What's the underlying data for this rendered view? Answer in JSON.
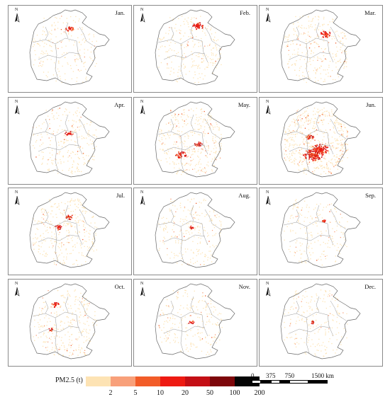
{
  "panels": [
    {
      "month": "Jan.",
      "intensity": 0.22,
      "hotspots": [
        [
          0.55,
          0.22,
          3
        ]
      ]
    },
    {
      "month": "Feb.",
      "intensity": 0.3,
      "hotspots": [
        [
          0.6,
          0.18,
          4
        ]
      ]
    },
    {
      "month": "Mar.",
      "intensity": 0.4,
      "hotspots": [
        [
          0.62,
          0.3,
          4
        ]
      ]
    },
    {
      "month": "Apr.",
      "intensity": 0.32,
      "hotspots": [
        [
          0.55,
          0.4,
          3
        ]
      ]
    },
    {
      "month": "May.",
      "intensity": 0.55,
      "hotspots": [
        [
          0.35,
          0.7,
          4
        ],
        [
          0.6,
          0.55,
          3
        ]
      ]
    },
    {
      "month": "Jun.",
      "intensity": 1.0,
      "hotspots": [
        [
          0.45,
          0.7,
          7
        ],
        [
          0.55,
          0.62,
          6
        ],
        [
          0.4,
          0.45,
          3
        ]
      ]
    },
    {
      "month": "Jul.",
      "intensity": 0.5,
      "hotspots": [
        [
          0.4,
          0.45,
          3
        ],
        [
          0.55,
          0.3,
          3
        ]
      ]
    },
    {
      "month": "Aug.",
      "intensity": 0.3,
      "hotspots": [
        [
          0.5,
          0.45,
          2
        ]
      ]
    },
    {
      "month": "Sep.",
      "intensity": 0.22,
      "hotspots": [
        [
          0.6,
          0.35,
          2
        ]
      ]
    },
    {
      "month": "Oct.",
      "intensity": 0.45,
      "hotspots": [
        [
          0.35,
          0.25,
          3
        ],
        [
          0.3,
          0.6,
          2
        ]
      ]
    },
    {
      "month": "Nov.",
      "intensity": 0.28,
      "hotspots": [
        [
          0.5,
          0.5,
          2
        ]
      ]
    },
    {
      "month": "Dec.",
      "intensity": 0.22,
      "hotspots": [
        [
          0.45,
          0.5,
          2
        ]
      ]
    }
  ],
  "north_arrow": {
    "label": "N"
  },
  "legend": {
    "title": "PM2.5 (t)",
    "colors": [
      "#fde3b4",
      "#f8a07a",
      "#f25c28",
      "#ee1a12",
      "#c40f15",
      "#7d070b",
      "#050505"
    ],
    "ticks": [
      "2",
      "5",
      "10",
      "20",
      "50",
      "100",
      "200"
    ]
  },
  "scale_bar": {
    "labels": [
      "0",
      "375",
      "750",
      "1500 km"
    ]
  }
}
